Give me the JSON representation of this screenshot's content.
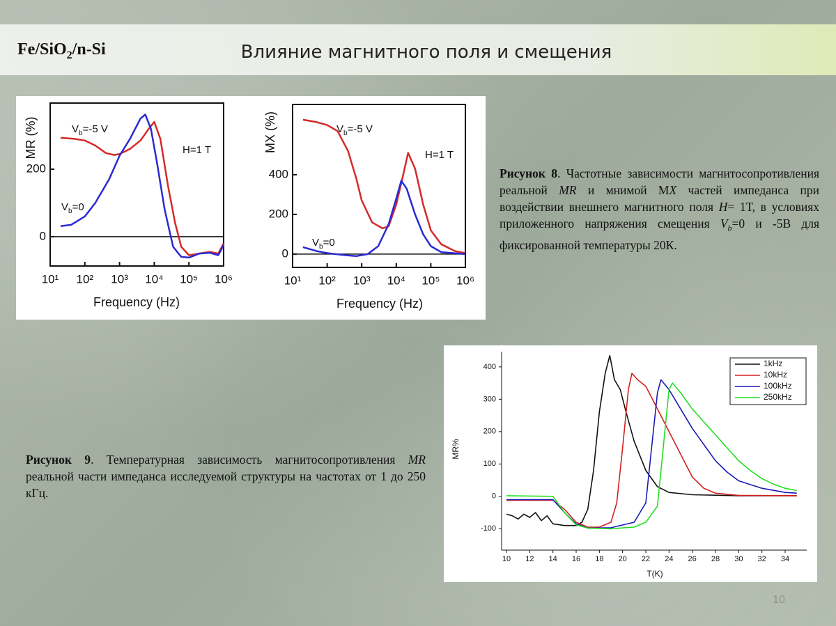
{
  "header": {
    "label": {
      "text": "Fe/SiO",
      "sub": "2",
      "rest": "/n-Si"
    },
    "title": "Влияние магнитного поля и смещения"
  },
  "chart_data": [
    {
      "type": "line",
      "y_label": "MR (%)",
      "x_label": "Frequency (Hz)",
      "xlog": true,
      "xlim": [
        10,
        1000000
      ],
      "ylim": [
        -87,
        396
      ],
      "xticks": [
        {
          "value": 10,
          "label": "10¹"
        },
        {
          "value": 100,
          "label": "10²"
        },
        {
          "value": 1000,
          "label": "10³"
        },
        {
          "value": 10000,
          "label": "10⁴"
        },
        {
          "value": 100000,
          "label": "10⁵"
        },
        {
          "value": 1000000,
          "label": "10⁶"
        }
      ],
      "yticks": [
        0,
        200
      ],
      "reference_line": 0,
      "annotations": [
        {
          "text": "V",
          "sub": "b",
          "rest": "=-5 V"
        },
        {
          "text": "V",
          "sub": "b",
          "rest": "=0"
        },
        {
          "text": "H=1 T"
        }
      ],
      "series": [
        {
          "color": "#d42a2a",
          "x": [
            20,
            50,
            100,
            200,
            400,
            700,
            1000,
            2000,
            4000,
            7000,
            10000,
            15000,
            25000,
            40000,
            60000,
            100000,
            200000,
            400000,
            700000,
            1000000
          ],
          "values": [
            293,
            290,
            285,
            270,
            248,
            242,
            245,
            260,
            285,
            320,
            340,
            290,
            150,
            40,
            -30,
            -55,
            -50,
            -45,
            -50,
            -20
          ]
        },
        {
          "color": "#2a2ad4",
          "x": [
            20,
            40,
            100,
            200,
            500,
            1000,
            2000,
            4000,
            5500,
            8000,
            12000,
            20000,
            35000,
            60000,
            100000,
            200000,
            400000,
            700000,
            1000000
          ],
          "values": [
            31,
            35,
            60,
            100,
            170,
            240,
            290,
            350,
            362,
            320,
            220,
            80,
            -30,
            -60,
            -62,
            -50,
            -48,
            -55,
            -25
          ]
        }
      ]
    },
    {
      "type": "line",
      "y_label": "MX (%)",
      "x_label": "Frequency (Hz)",
      "xlog": true,
      "xlim": [
        10,
        1000000
      ],
      "ylim": [
        -67,
        754
      ],
      "xticks": [
        {
          "value": 10,
          "label": "10¹"
        },
        {
          "value": 100,
          "label": "10²"
        },
        {
          "value": 1000,
          "label": "10³"
        },
        {
          "value": 10000,
          "label": "10⁴"
        },
        {
          "value": 100000,
          "label": "10⁵"
        },
        {
          "value": 1000000,
          "label": "10⁶"
        }
      ],
      "yticks": [
        0,
        200,
        400
      ],
      "reference_line": 0,
      "annotations": [
        {
          "text": "V",
          "sub": "b",
          "rest": "=-5 V"
        },
        {
          "text": "V",
          "sub": "b",
          "rest": "=0"
        },
        {
          "text": "H=1 T"
        }
      ],
      "series": [
        {
          "color": "#d42a2a",
          "x": [
            20,
            50,
            100,
            200,
            400,
            700,
            1000,
            2000,
            4000,
            6000,
            10000,
            15000,
            22000,
            35000,
            60000,
            100000,
            200000,
            500000,
            1000000
          ],
          "values": [
            677,
            665,
            650,
            620,
            520,
            380,
            270,
            160,
            130,
            140,
            250,
            380,
            510,
            430,
            250,
            120,
            50,
            15,
            5
          ]
        },
        {
          "color": "#2a2ad4",
          "x": [
            20,
            50,
            100,
            300,
            700,
            1500,
            3000,
            6000,
            10000,
            14000,
            20000,
            35000,
            60000,
            100000,
            200000,
            1000000
          ],
          "values": [
            35,
            15,
            5,
            -5,
            -10,
            0,
            40,
            150,
            280,
            370,
            330,
            200,
            100,
            40,
            10,
            0
          ]
        }
      ]
    },
    {
      "type": "line",
      "y_label": "MR%",
      "x_label": "T(K)",
      "xlog": false,
      "xlim": [
        9.58,
        35.86
      ],
      "ylim": [
        -166,
        447
      ],
      "xticks": [
        10,
        12,
        14,
        16,
        18,
        20,
        22,
        24,
        26,
        28,
        30,
        32,
        34
      ],
      "yticks": [
        -100,
        0,
        100,
        200,
        300,
        400
      ],
      "legend": "upper right",
      "series": [
        {
          "name": "1kHz",
          "color": "#111111",
          "x": [
            10,
            10.5,
            11,
            11.5,
            12,
            12.5,
            13,
            13.5,
            14,
            15,
            16,
            16.5,
            17,
            17.5,
            18,
            18.5,
            18.9,
            19.3,
            19.8,
            20.3,
            21,
            22,
            23,
            24,
            26,
            30,
            35
          ],
          "values": [
            -55,
            -60,
            -70,
            -55,
            -65,
            -50,
            -75,
            -60,
            -85,
            -90,
            -90,
            -80,
            -40,
            80,
            260,
            380,
            435,
            360,
            330,
            260,
            170,
            80,
            30,
            12,
            5,
            2,
            2
          ]
        },
        {
          "name": "10kHz",
          "color": "#d42020",
          "x": [
            10,
            12,
            14,
            15,
            16,
            17,
            18,
            19,
            19.5,
            20,
            20.5,
            20.8,
            21.3,
            22,
            23,
            24,
            25,
            26,
            27,
            28,
            30,
            35
          ],
          "values": [
            -12,
            -12,
            -12,
            -40,
            -80,
            -95,
            -95,
            -80,
            -20,
            150,
            330,
            380,
            360,
            340,
            270,
            200,
            130,
            60,
            25,
            10,
            3,
            2
          ]
        },
        {
          "name": "100kHz",
          "color": "#1a1ab8",
          "x": [
            10,
            14,
            15,
            16,
            17,
            19,
            21,
            22,
            22.5,
            23,
            23.3,
            24,
            25,
            26,
            27,
            28,
            29,
            30,
            32,
            34,
            35
          ],
          "values": [
            -10,
            -10,
            -50,
            -85,
            -98,
            -97,
            -80,
            -20,
            150,
            320,
            360,
            330,
            270,
            210,
            160,
            110,
            75,
            48,
            25,
            12,
            10
          ]
        },
        {
          "name": "250kHz",
          "color": "#22dd22",
          "x": [
            10,
            14,
            15,
            16,
            17,
            19,
            21,
            22,
            23,
            23.5,
            24,
            24.3,
            25,
            26,
            27,
            28,
            29,
            30,
            31,
            32,
            33,
            34,
            35
          ],
          "values": [
            2,
            0,
            -50,
            -88,
            -98,
            -100,
            -95,
            -80,
            -30,
            150,
            330,
            350,
            320,
            270,
            230,
            190,
            150,
            110,
            80,
            55,
            38,
            25,
            18
          ]
        }
      ]
    }
  ],
  "captions": [
    [
      {
        "text": "Рисунок 8",
        "style": "bold"
      },
      {
        "text": ". Частотные зависимости магнитосопротивления реальной "
      },
      {
        "text": "MR",
        "style": "italic"
      },
      {
        "text": " и мнимой М"
      },
      {
        "text": "X",
        "style": "italic"
      },
      {
        "text": " частей импеданса при воздействии внешнего магнитного поля "
      },
      {
        "text": "H",
        "style": "italic"
      },
      {
        "text": "= 1Т, в условиях приложенного напряжения смещения "
      },
      {
        "text": "V",
        "style": "italic"
      },
      {
        "text": "b",
        "style": "italic-sub"
      },
      {
        "text": "=0 и -5В для фиксированной температуры 20К."
      }
    ],
    [
      {
        "text": "Рисунок 9",
        "style": "bold"
      },
      {
        "text": ". Температурная зависимость магнитосопротивления "
      },
      {
        "text": "MR",
        "style": "italic"
      },
      {
        "text": " реальной части импеданса исследуемой структуры на частотах от 1 до 250 кГц."
      }
    ]
  ],
  "page_number": "10"
}
